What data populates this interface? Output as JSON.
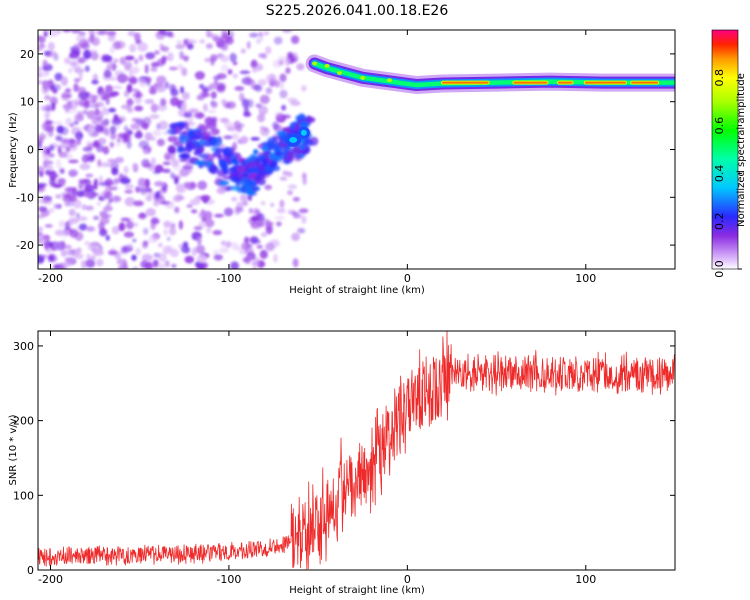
{
  "title": "S225.2026.041.00.18.E26",
  "chart_data": [
    {
      "type": "heatmap",
      "xlabel": "Height of straight line (km)",
      "ylabel": "Frequency (Hz)",
      "xlim": [
        -207,
        150
      ],
      "ylim": [
        -25,
        25
      ],
      "xticks": [
        -200,
        -100,
        0,
        100
      ],
      "xtick_labels": [
        "-200",
        "-100",
        "0",
        "100"
      ],
      "yticks": [
        -20,
        -10,
        0,
        10,
        20
      ],
      "ytick_labels": [
        "-20",
        "-10",
        "0",
        "10",
        "20"
      ],
      "colorbar": {
        "label": "Normalized spectral amplitude",
        "range": [
          0,
          1
        ],
        "ticks": [
          0.0,
          0.2,
          0.4,
          0.6,
          0.8
        ],
        "tick_labels": [
          "0.0",
          "0.2",
          "0.4",
          "0.6",
          "0.8"
        ]
      },
      "features": [
        {
          "name": "noise",
          "x_range": [
            -207,
            -65
          ],
          "y_range": [
            -25,
            25
          ],
          "amplitude": 0.15
        },
        {
          "name": "arc",
          "points": [
            [
              -130,
              3
            ],
            [
              -110,
              -1
            ],
            [
              -95,
              -5
            ],
            [
              -88,
              -6
            ],
            [
              -82,
              -3
            ],
            [
              -72,
              0
            ],
            [
              -62,
              2
            ],
            [
              -55,
              4
            ]
          ],
          "amplitude": 0.25
        },
        {
          "name": "bright-spot",
          "x": -58,
          "y": 3.5,
          "amplitude": 0.35
        },
        {
          "name": "transition",
          "points": [
            [
              -52,
              18
            ],
            [
              -45,
              17
            ],
            [
              -35,
              16
            ],
            [
              -25,
              15
            ],
            [
              -15,
              14.5
            ],
            [
              -5,
              14
            ],
            [
              5,
              13.5
            ],
            [
              20,
              13.8
            ],
            [
              50,
              14
            ],
            [
              80,
              14.2
            ],
            [
              110,
              14
            ],
            [
              150,
              14
            ]
          ],
          "amplitude": 0.85
        }
      ]
    },
    {
      "type": "line",
      "xlabel": "Height of straight line (km)",
      "ylabel": "SNR (10 * v/v)",
      "xlim": [
        -207,
        150
      ],
      "ylim": [
        0,
        320
      ],
      "xticks": [
        -200,
        -100,
        0,
        100
      ],
      "xtick_labels": [
        "-200",
        "-100",
        "0",
        "100"
      ],
      "yticks": [
        0,
        100,
        200,
        300
      ],
      "ytick_labels": [
        "0",
        "100",
        "200",
        "300"
      ],
      "color": "#ee2a2a",
      "series": [
        {
          "name": "SNR",
          "x": [
            -207,
            -200,
            -180,
            -160,
            -140,
            -120,
            -100,
            -90,
            -80,
            -70,
            -60,
            -55,
            -50,
            -45,
            -40,
            -35,
            -30,
            -25,
            -20,
            -15,
            -10,
            -5,
            0,
            5,
            10,
            15,
            20,
            25,
            30,
            40,
            50,
            60,
            70,
            80,
            90,
            100,
            110,
            120,
            130,
            140,
            150
          ],
          "values": [
            18,
            18,
            19,
            20,
            21,
            22,
            24,
            26,
            30,
            35,
            45,
            55,
            70,
            85,
            100,
            115,
            125,
            135,
            150,
            165,
            180,
            195,
            205,
            220,
            235,
            248,
            255,
            260,
            262,
            263,
            262,
            264,
            265,
            263,
            262,
            263,
            264,
            262,
            263,
            262,
            263
          ]
        }
      ]
    }
  ]
}
